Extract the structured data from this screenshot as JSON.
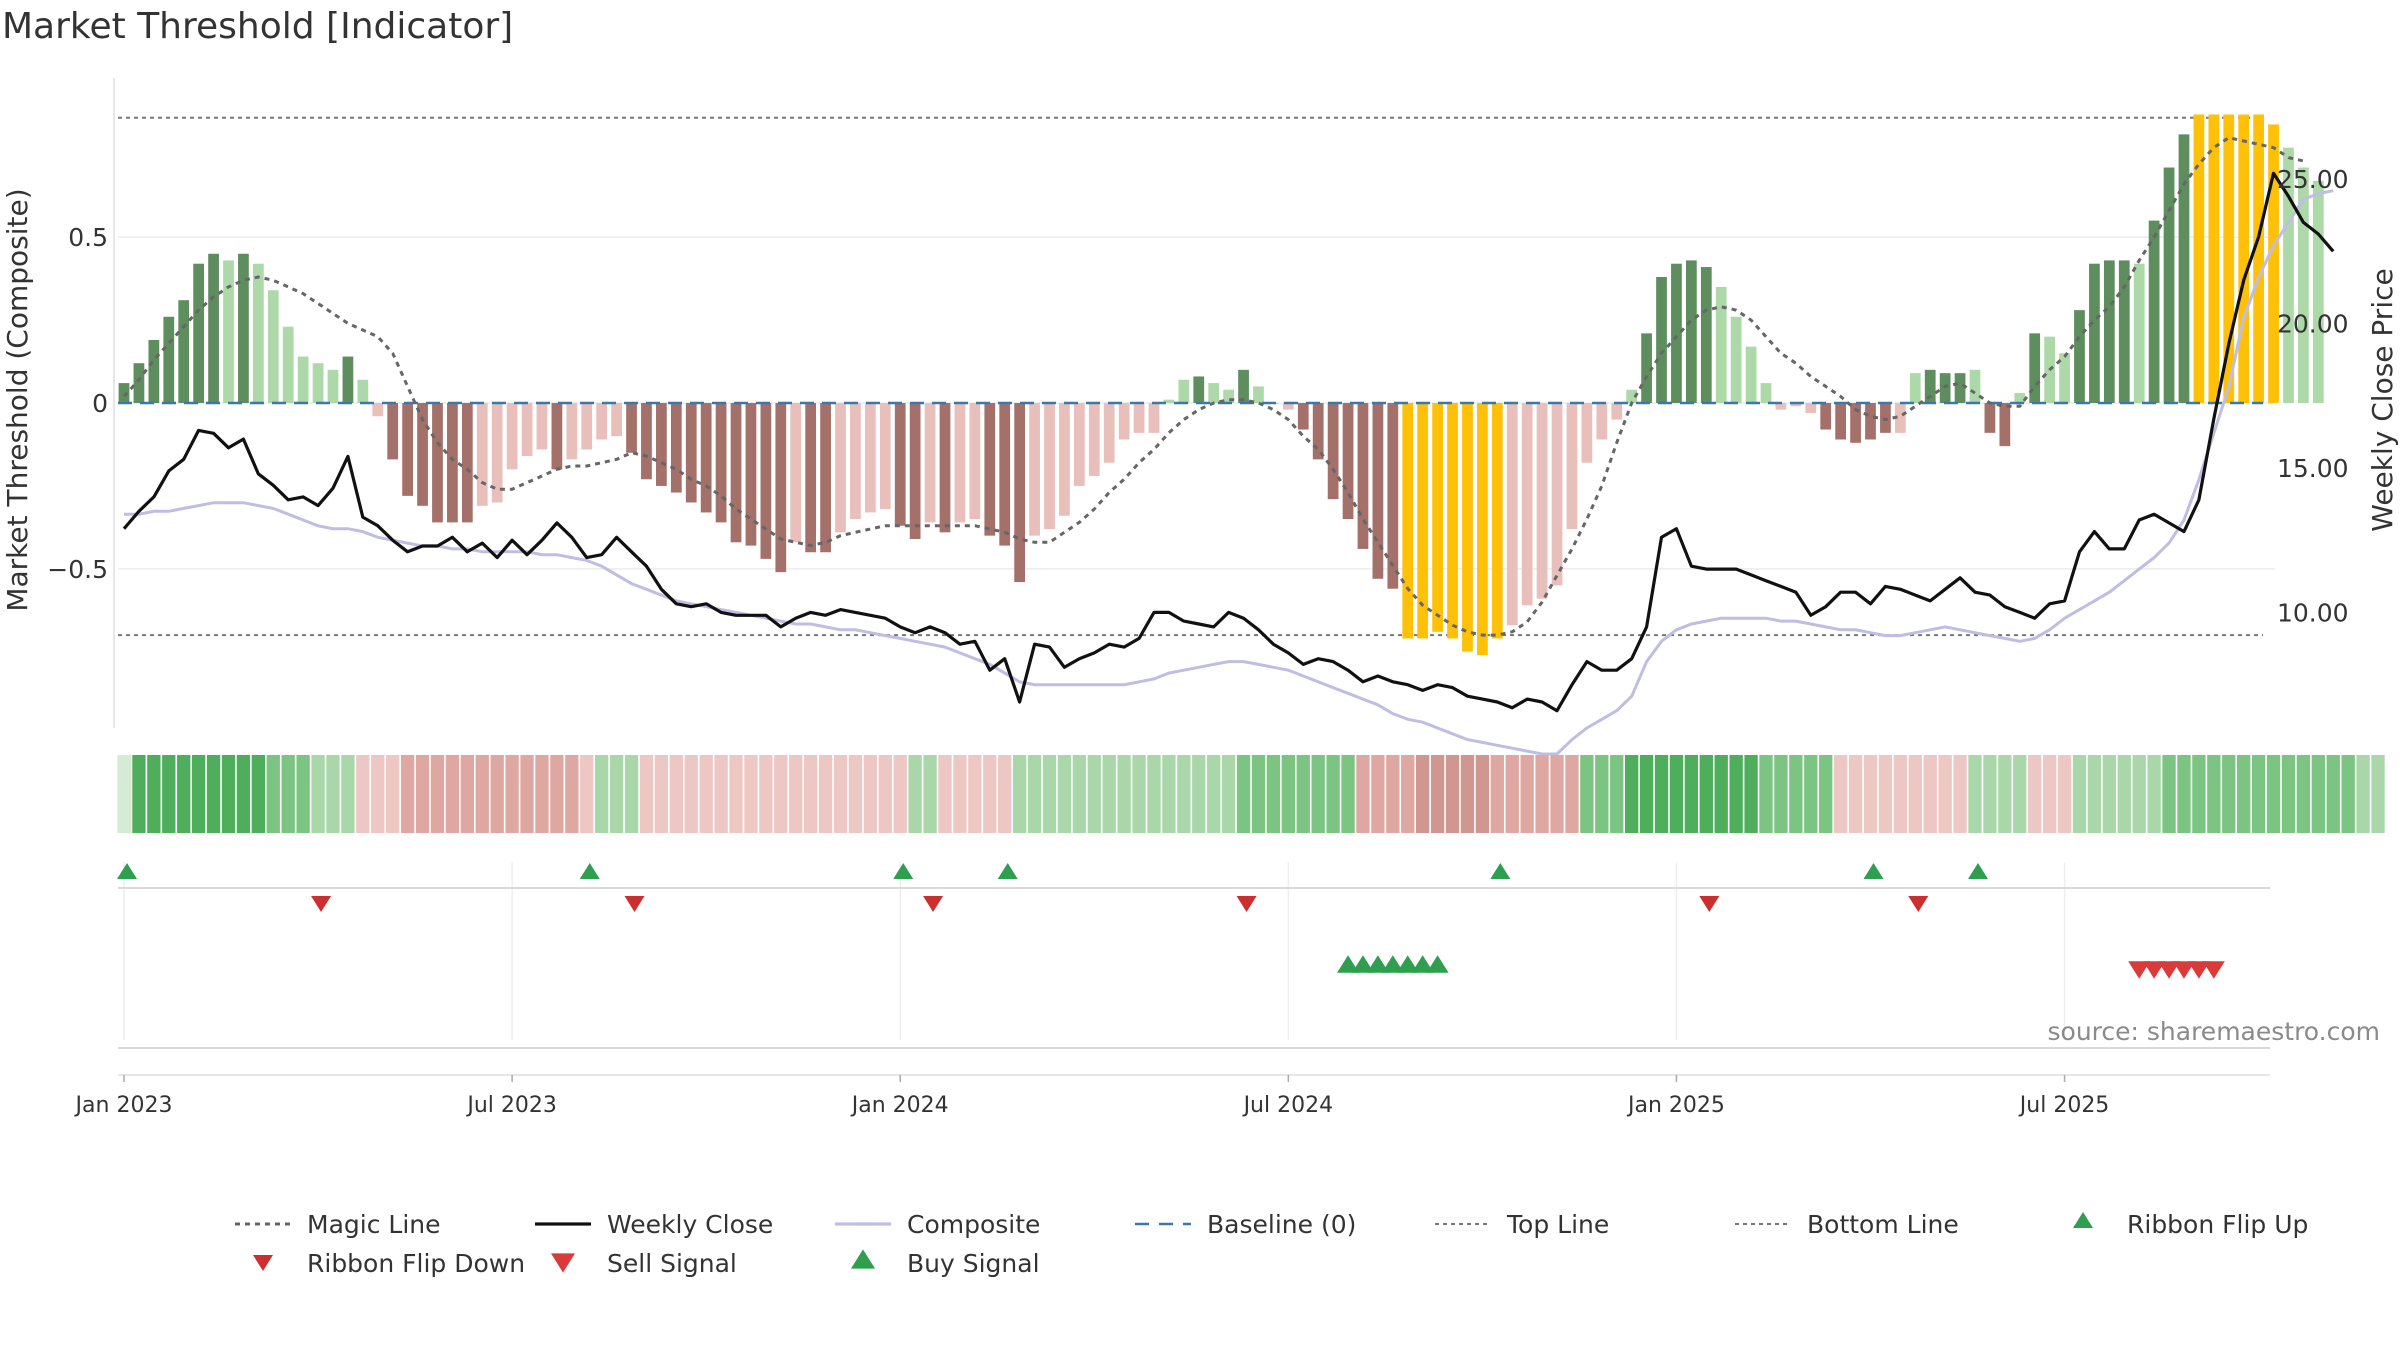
{
  "page_title": "Market Threshold [Indicator]",
  "source": "source: sharemaestro.com",
  "colors": {
    "pos_dark": "#5e8e5e",
    "pos_light": "#add8a8",
    "neg_dark": "#a4706a",
    "neg_light": "#e8bfbb",
    "extreme": "#ffc107",
    "weekly": "#111111",
    "composite": "#c0bde3",
    "magic": "#666666",
    "baseline": "#3b78a8",
    "guide": "#777777",
    "ribbon_up": "#2e9e4f",
    "sell": "#d93a3a",
    "buy": "#2e9e4f",
    "flipdown": "#cc2f2f"
  },
  "chart_data": {
    "type": "bar",
    "title": "Market Threshold [Indicator]",
    "ylabel_left": "Market Threshold (Composite)",
    "ylabel_right": "Weekly Close Price",
    "ylim_left": [
      -0.98,
      0.98
    ],
    "ylim_right": [
      6.0,
      28.5
    ],
    "yticks_left": [
      {
        "v": 0.5,
        "label": "0.5"
      },
      {
        "v": 0,
        "label": "0"
      },
      {
        "v": -0.5,
        "label": "−0.5"
      }
    ],
    "yticks_right": [
      {
        "v": 25,
        "label": "25.00"
      },
      {
        "v": 20,
        "label": "20.00"
      },
      {
        "v": 15,
        "label": "15.00"
      },
      {
        "v": 10,
        "label": "10.00"
      }
    ],
    "xticks": [
      "Jan 2023",
      "Jul 2023",
      "Jan 2024",
      "Jul 2024",
      "Jan 2025",
      "Jul 2025"
    ],
    "grid": true,
    "legend_position": "bottom",
    "top_line": 0.86,
    "bottom_line": -0.7,
    "weeks": 145,
    "start": "2023-01-02",
    "composite_bars": [
      0.06,
      0.12,
      0.19,
      0.26,
      0.31,
      0.42,
      0.45,
      0.43,
      0.45,
      0.42,
      0.34,
      0.23,
      0.14,
      0.12,
      0.1,
      0.14,
      0.07,
      -0.04,
      -0.17,
      -0.28,
      -0.31,
      -0.36,
      -0.36,
      -0.36,
      -0.31,
      -0.3,
      -0.2,
      -0.16,
      -0.14,
      -0.2,
      -0.17,
      -0.14,
      -0.11,
      -0.1,
      -0.15,
      -0.23,
      -0.25,
      -0.27,
      -0.3,
      -0.33,
      -0.36,
      -0.42,
      -0.43,
      -0.47,
      -0.51,
      -0.42,
      -0.45,
      -0.45,
      -0.39,
      -0.35,
      -0.33,
      -0.32,
      -0.37,
      -0.41,
      -0.36,
      -0.39,
      -0.36,
      -0.35,
      -0.4,
      -0.43,
      -0.54,
      -0.4,
      -0.38,
      -0.34,
      -0.25,
      -0.22,
      -0.18,
      -0.11,
      -0.09,
      -0.09,
      0.01,
      0.07,
      0.08,
      0.06,
      0.04,
      0.1,
      0.05,
      0.0,
      -0.02,
      -0.08,
      -0.17,
      -0.29,
      -0.35,
      -0.44,
      -0.53,
      -0.56,
      -0.71,
      -0.71,
      -0.69,
      -0.71,
      -0.75,
      -0.76,
      -0.71,
      -0.67,
      -0.61,
      -0.59,
      -0.55,
      -0.38,
      -0.18,
      -0.11,
      -0.05,
      0.04,
      0.21,
      0.38,
      0.42,
      0.43,
      0.41,
      0.35,
      0.26,
      0.17,
      0.06,
      -0.02,
      -0.01,
      -0.03,
      -0.08,
      -0.11,
      -0.12,
      -0.11,
      -0.09,
      -0.09,
      0.09,
      0.1,
      0.09,
      0.09,
      0.1,
      -0.09,
      -0.13,
      0.03,
      0.21,
      0.2,
      0.15,
      0.28,
      0.42,
      0.43,
      0.43,
      0.42,
      0.55,
      0.71,
      0.81,
      0.87,
      0.87,
      0.87,
      0.87,
      0.87,
      0.84,
      0.77,
      0.71,
      0.67
    ],
    "bar_tone": [
      "pd",
      "pd",
      "pd",
      "pd",
      "pd",
      "pd",
      "pd",
      "pl",
      "pd",
      "pl",
      "pl",
      "pl",
      "pl",
      "pl",
      "pl",
      "pd",
      "pl",
      "nl",
      "nd",
      "nd",
      "nd",
      "nd",
      "nd",
      "nd",
      "nl",
      "nl",
      "nl",
      "nl",
      "nl",
      "nd",
      "nl",
      "nl",
      "nl",
      "nl",
      "nd",
      "nd",
      "nd",
      "nd",
      "nd",
      "nd",
      "nd",
      "nd",
      "nd",
      "nd",
      "nd",
      "nl",
      "nd",
      "nd",
      "nl",
      "nl",
      "nl",
      "nl",
      "nd",
      "nd",
      "nl",
      "nd",
      "nl",
      "nl",
      "nd",
      "nd",
      "nd",
      "nl",
      "nl",
      "nl",
      "nl",
      "nl",
      "nl",
      "nl",
      "nl",
      "nl",
      "pl",
      "pl",
      "pd",
      "pl",
      "pl",
      "pd",
      "pl",
      "pl",
      "nl",
      "nd",
      "nd",
      "nd",
      "nd",
      "nd",
      "nd",
      "nd",
      "y",
      "y",
      "y",
      "y",
      "y",
      "y",
      "y",
      "nl",
      "nl",
      "nl",
      "nl",
      "nl",
      "nl",
      "nl",
      "nl",
      "pl",
      "pd",
      "pd",
      "pd",
      "pd",
      "pd",
      "pl",
      "pl",
      "pl",
      "pl",
      "nl",
      "nl",
      "nl",
      "nd",
      "nd",
      "nd",
      "nd",
      "nd",
      "nl",
      "pl",
      "pd",
      "pd",
      "pd",
      "pl",
      "nd",
      "nd",
      "pl",
      "pd",
      "pl",
      "pl",
      "pd",
      "pd",
      "pd",
      "pd",
      "pl",
      "pd",
      "pd",
      "pd",
      "y",
      "y",
      "y",
      "y",
      "y",
      "y",
      "pl",
      "pl",
      "pl",
      "pl"
    ],
    "magic_line": [
      0.02,
      0.07,
      0.13,
      0.18,
      0.23,
      0.28,
      0.32,
      0.35,
      0.37,
      0.38,
      0.37,
      0.35,
      0.33,
      0.3,
      0.27,
      0.24,
      0.22,
      0.2,
      0.15,
      0.05,
      -0.05,
      -0.12,
      -0.17,
      -0.2,
      -0.24,
      -0.26,
      -0.26,
      -0.24,
      -0.22,
      -0.2,
      -0.19,
      -0.19,
      -0.18,
      -0.17,
      -0.15,
      -0.16,
      -0.18,
      -0.2,
      -0.23,
      -0.25,
      -0.28,
      -0.32,
      -0.35,
      -0.38,
      -0.41,
      -0.42,
      -0.43,
      -0.42,
      -0.4,
      -0.39,
      -0.38,
      -0.37,
      -0.37,
      -0.37,
      -0.37,
      -0.37,
      -0.37,
      -0.37,
      -0.38,
      -0.39,
      -0.41,
      -0.42,
      -0.42,
      -0.39,
      -0.36,
      -0.32,
      -0.27,
      -0.23,
      -0.18,
      -0.14,
      -0.09,
      -0.05,
      -0.02,
      0.0,
      0.01,
      0.01,
      0.0,
      -0.02,
      -0.05,
      -0.1,
      -0.14,
      -0.2,
      -0.27,
      -0.35,
      -0.42,
      -0.49,
      -0.56,
      -0.61,
      -0.64,
      -0.67,
      -0.69,
      -0.7,
      -0.7,
      -0.69,
      -0.66,
      -0.6,
      -0.52,
      -0.44,
      -0.35,
      -0.25,
      -0.12,
      0.0,
      0.08,
      0.15,
      0.2,
      0.25,
      0.28,
      0.29,
      0.28,
      0.25,
      0.2,
      0.15,
      0.12,
      0.08,
      0.05,
      0.02,
      -0.02,
      -0.04,
      -0.05,
      -0.04,
      -0.01,
      0.02,
      0.05,
      0.06,
      0.03,
      0.0,
      -0.01,
      -0.01,
      0.05,
      0.1,
      0.14,
      0.2,
      0.25,
      0.29,
      0.35,
      0.43,
      0.5,
      0.58,
      0.66,
      0.72,
      0.77,
      0.8,
      0.79,
      0.78,
      0.77,
      0.74,
      0.73
    ],
    "composite_line": [
      13.4,
      13.4,
      13.5,
      13.5,
      13.6,
      13.7,
      13.8,
      13.8,
      13.8,
      13.7,
      13.6,
      13.4,
      13.2,
      13.0,
      12.9,
      12.9,
      12.8,
      12.6,
      12.5,
      12.4,
      12.3,
      12.3,
      12.2,
      12.2,
      12.1,
      12.1,
      12.1,
      12.1,
      12.0,
      12.0,
      11.9,
      11.8,
      11.6,
      11.3,
      11.0,
      10.8,
      10.6,
      10.4,
      10.3,
      10.2,
      10.1,
      10.0,
      9.9,
      9.8,
      9.7,
      9.6,
      9.6,
      9.5,
      9.4,
      9.4,
      9.3,
      9.2,
      9.1,
      9.0,
      8.9,
      8.8,
      8.6,
      8.4,
      8.2,
      7.9,
      7.6,
      7.5,
      7.5,
      7.5,
      7.5,
      7.5,
      7.5,
      7.5,
      7.6,
      7.7,
      7.9,
      8.0,
      8.1,
      8.2,
      8.3,
      8.3,
      8.2,
      8.1,
      8.0,
      7.8,
      7.6,
      7.4,
      7.2,
      7.0,
      6.8,
      6.5,
      6.3,
      6.2,
      6.0,
      5.8,
      5.6,
      5.5,
      5.4,
      5.3,
      5.2,
      5.1,
      5.1,
      5.6,
      6.0,
      6.3,
      6.6,
      7.1,
      8.3,
      9.0,
      9.4,
      9.6,
      9.7,
      9.8,
      9.8,
      9.8,
      9.8,
      9.7,
      9.7,
      9.6,
      9.5,
      9.4,
      9.4,
      9.3,
      9.2,
      9.2,
      9.3,
      9.4,
      9.5,
      9.4,
      9.3,
      9.2,
      9.1,
      9.0,
      9.1,
      9.4,
      9.8,
      10.1,
      10.4,
      10.7,
      11.1,
      11.5,
      11.9,
      12.4,
      13.2,
      14.6,
      16.2,
      17.8,
      20.2,
      21.6,
      22.7,
      23.5,
      24.3,
      24.5,
      24.6
    ],
    "weekly_close": [
      12.9,
      13.5,
      14.0,
      14.9,
      15.3,
      16.3,
      16.2,
      15.7,
      16.0,
      14.8,
      14.4,
      13.9,
      14.0,
      13.7,
      14.3,
      15.4,
      13.3,
      13.0,
      12.5,
      12.1,
      12.3,
      12.3,
      12.6,
      12.1,
      12.4,
      11.9,
      12.5,
      12.0,
      12.5,
      13.1,
      12.6,
      11.9,
      12.0,
      12.6,
      12.1,
      11.6,
      10.8,
      10.3,
      10.2,
      10.3,
      10.0,
      9.9,
      9.9,
      9.9,
      9.5,
      9.8,
      10.0,
      9.9,
      10.1,
      10.0,
      9.9,
      9.8,
      9.5,
      9.3,
      9.5,
      9.3,
      8.9,
      9.0,
      8.0,
      8.4,
      6.9,
      8.9,
      8.8,
      8.1,
      8.4,
      8.6,
      8.9,
      8.8,
      9.1,
      10.0,
      10.0,
      9.7,
      9.6,
      9.5,
      10.0,
      9.8,
      9.4,
      8.9,
      8.6,
      8.2,
      8.4,
      8.3,
      8.0,
      7.6,
      7.8,
      7.6,
      7.5,
      7.3,
      7.5,
      7.4,
      7.1,
      7.0,
      6.9,
      6.7,
      7.0,
      6.9,
      6.6,
      7.5,
      8.3,
      8.0,
      8.0,
      8.4,
      9.5,
      12.6,
      12.9,
      11.6,
      11.5,
      11.5,
      11.5,
      11.3,
      11.1,
      10.9,
      10.7,
      9.9,
      10.2,
      10.7,
      10.7,
      10.3,
      10.9,
      10.8,
      10.6,
      10.4,
      10.8,
      11.2,
      10.7,
      10.6,
      10.2,
      10.0,
      9.8,
      10.3,
      10.4,
      12.1,
      12.8,
      12.2,
      12.2,
      13.2,
      13.4,
      13.1,
      12.8,
      13.9,
      16.7,
      19.3,
      21.5,
      23.0,
      25.2,
      24.4,
      23.5,
      23.1,
      22.5
    ]
  },
  "ribbon": {
    "strengths": [
      0.05,
      3,
      3,
      3,
      3,
      3,
      3,
      3,
      3,
      3,
      2,
      2,
      2,
      1,
      1,
      1,
      -1,
      -1,
      -1,
      -2,
      -2,
      -2,
      -2,
      -2,
      -2,
      -2,
      -2,
      -2,
      -2,
      -2,
      -2,
      -1,
      1,
      1,
      1,
      -1,
      -1,
      -1,
      -1,
      -1,
      -1,
      -1,
      -1,
      -1,
      -1,
      -1,
      -1,
      -1,
      -1,
      -1,
      -1,
      -1,
      -1,
      1,
      1,
      -1,
      -1,
      -1,
      -1,
      -1,
      1,
      1,
      1,
      1,
      1,
      1,
      1,
      1,
      1,
      1,
      1,
      1,
      1,
      1,
      1,
      2,
      2,
      2,
      2,
      2,
      2,
      2,
      2,
      -2,
      -2,
      -2,
      -2,
      -3,
      -3,
      -3,
      -3,
      -3,
      -2,
      -2,
      -2,
      -2,
      -2,
      -2,
      2,
      2,
      2,
      3,
      3,
      3,
      3,
      3,
      3,
      3,
      3,
      3,
      2,
      2,
      2,
      2,
      2,
      -1,
      -1,
      -1,
      -1,
      -1,
      -1,
      -1,
      -1,
      -1,
      1,
      1,
      1,
      1,
      -1,
      -1,
      -1,
      1,
      1,
      1,
      1,
      1,
      1,
      2,
      2,
      2,
      2,
      2,
      2,
      2,
      2,
      2,
      2,
      2,
      2,
      2,
      1,
      1
    ]
  },
  "signals": {
    "ribbon_flip_up": [
      0,
      31,
      52,
      59,
      92,
      117,
      124
    ],
    "ribbon_flip_down": [
      13,
      34,
      54,
      75,
      106,
      120
    ],
    "buy_signal": [
      82,
      83,
      84,
      85,
      86,
      87,
      88
    ],
    "sell_signal": [
      135,
      136,
      137,
      138,
      139,
      140
    ]
  },
  "legend": [
    {
      "key": "magic",
      "label": "Magic Line"
    },
    {
      "key": "weekly",
      "label": "Weekly Close"
    },
    {
      "key": "composite",
      "label": "Composite"
    },
    {
      "key": "baseline",
      "label": "Baseline (0)"
    },
    {
      "key": "top",
      "label": "Top Line"
    },
    {
      "key": "bottom",
      "label": "Bottom Line"
    },
    {
      "key": "flipup",
      "label": "Ribbon Flip Up"
    },
    {
      "key": "flipdown",
      "label": "Ribbon Flip Down"
    },
    {
      "key": "sell",
      "label": "Sell Signal"
    },
    {
      "key": "buy",
      "label": "Buy Signal"
    }
  ]
}
